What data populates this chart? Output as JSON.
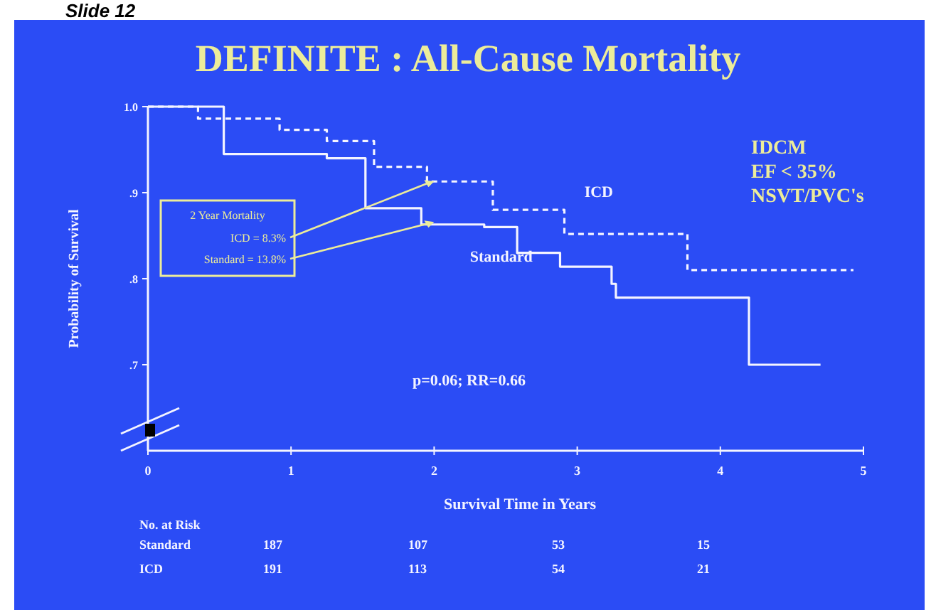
{
  "chart_data": {
    "type": "step",
    "title": "DEFINITE : All-Cause Mortality",
    "xlabel": "Survival Time in Years",
    "ylabel": "Probability of Survival",
    "xlim": [
      0,
      5
    ],
    "xticks": [
      0,
      1,
      2,
      3,
      4,
      5
    ],
    "ylim": [
      0.6,
      1.0
    ],
    "yticks": [
      {
        "value": 0.7,
        "label": ".7"
      },
      {
        "value": 0.8,
        "label": ".8"
      },
      {
        "value": 0.9,
        "label": ".9"
      },
      {
        "value": 1.0,
        "label": "1.0"
      }
    ],
    "series": [
      {
        "name": "ICD",
        "color": "#f4f4ff",
        "line_style": "dashed",
        "x": [
          0,
          0.35,
          0.92,
          1.25,
          1.58,
          1.95,
          2.41,
          2.91,
          3.6,
          3.77,
          4.93
        ],
        "values": [
          1.0,
          0.986,
          0.973,
          0.96,
          0.93,
          0.913,
          0.88,
          0.852,
          0.852,
          0.81,
          0.81
        ]
      },
      {
        "name": "Standard",
        "color": "#f4f4ff",
        "line_style": "solid",
        "x": [
          0,
          0.53,
          1.25,
          1.52,
          1.91,
          2.35,
          2.58,
          2.88,
          3.24,
          3.27,
          4.2,
          4.7
        ],
        "values": [
          1.0,
          0.945,
          0.94,
          0.882,
          0.863,
          0.86,
          0.83,
          0.814,
          0.794,
          0.778,
          0.7,
          0.7
        ]
      }
    ],
    "annotations": [
      "p=0.06; RR=0.66",
      "IDCM",
      "EF < 35%",
      "NSVT/PVC's",
      "2 Year Mortality",
      {
        "text": "ICD = 8.3%",
        "x": 2,
        "y": 0.913
      },
      {
        "text": "Standard = 13.8%",
        "x": 2,
        "y": 0.866
      },
      "No. at Risk",
      "Standard",
      "187",
      "107",
      "53",
      "15",
      "ICD",
      "191",
      "113",
      "54",
      "21",
      "Slide 12"
    ]
  }
}
